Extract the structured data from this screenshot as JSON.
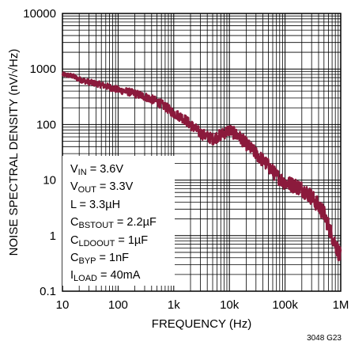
{
  "chart_data": {
    "type": "line",
    "xlabel": "FREQUENCY (Hz)",
    "ylabel": "NOISE SPECTRAL DENSITY (nV/√Hz)",
    "x_scale": "log",
    "y_scale": "log",
    "xlim": [
      10,
      1000000
    ],
    "ylim": [
      0.1,
      10000
    ],
    "x_ticks": [
      "10",
      "100",
      "1k",
      "10k",
      "100k",
      "1M"
    ],
    "y_ticks": [
      "10000",
      "1000",
      "100",
      "10",
      "1",
      "0.1"
    ],
    "grid": true,
    "series": [
      {
        "color": "#8b1a3c",
        "x": [
          10,
          15,
          20,
          30,
          50,
          70,
          100,
          150,
          200,
          300,
          500,
          700,
          1000,
          1500,
          2000,
          3000,
          5000,
          7000,
          10000,
          15000,
          20000,
          30000,
          50000,
          70000,
          100000,
          150000,
          200000,
          300000,
          500000,
          700000,
          1000000
        ],
        "y": [
          800,
          750,
          650,
          580,
          520,
          470,
          420,
          390,
          360,
          320,
          260,
          210,
          160,
          130,
          100,
          70,
          55,
          65,
          80,
          60,
          45,
          30,
          18,
          12,
          9,
          8,
          7,
          5,
          2.5,
          1,
          0.4
        ]
      }
    ]
  },
  "conditions": [
    {
      "main": "V",
      "sub": "IN",
      "rest": " = 3.6V"
    },
    {
      "main": "V",
      "sub": "OUT",
      "rest": " = 3.3V"
    },
    {
      "main": "L = 3.3µH",
      "sub": "",
      "rest": ""
    },
    {
      "main": "C",
      "sub": "BSTOUT",
      "rest": " = 2.2µF"
    },
    {
      "main": "C",
      "sub": "LDOOUT",
      "rest": " = 1µF"
    },
    {
      "main": "C",
      "sub": "BYP",
      "rest": " = 1nF"
    },
    {
      "main": "I",
      "sub": "LOAD",
      "rest": " = 40mA"
    }
  ],
  "figure_code": "3048 G23"
}
